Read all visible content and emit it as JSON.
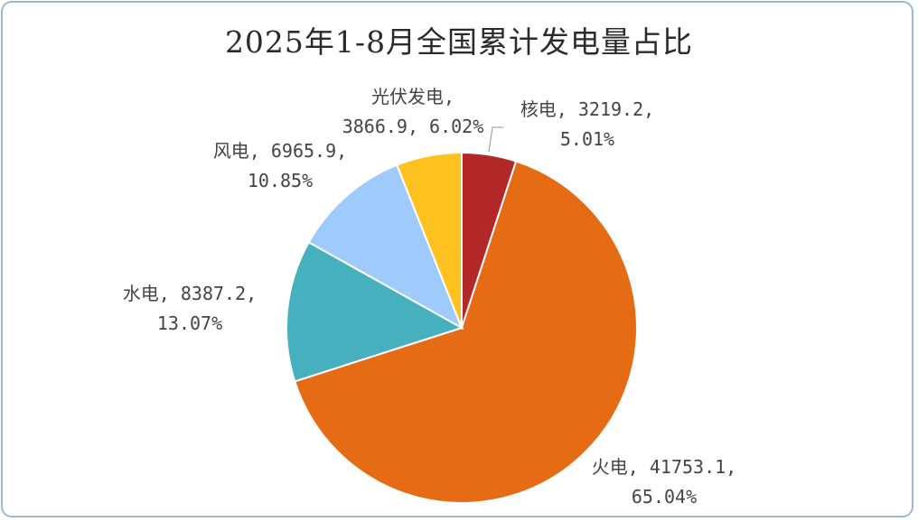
{
  "chart_data": {
    "type": "pie",
    "title": "2025年1-8月全国累计发电量占比",
    "slices": [
      {
        "name": "核电",
        "value": 3219.2,
        "percent_label": "5.01%",
        "color": "#b22727",
        "line1": "核电, 3219.2,",
        "line2": "5.01%"
      },
      {
        "name": "火电",
        "value": 41753.1,
        "percent_label": "65.04%",
        "color": "#e66b15",
        "line1": "火电, 41753.1,",
        "line2": "65.04%"
      },
      {
        "name": "水电",
        "value": 8387.2,
        "percent_label": "13.07%",
        "color": "#46b0bf",
        "line1": "水电, 8387.2,",
        "line2": "13.07%"
      },
      {
        "name": "风电",
        "value": 6965.9,
        "percent_label": "10.85%",
        "color": "#9ecbfb",
        "line1": "风电, 6965.9,",
        "line2": "10.85%"
      },
      {
        "name": "光伏发电",
        "value": 3866.9,
        "percent_label": "6.02%",
        "color": "#fdc21f",
        "line1": "光伏发电,",
        "line2": "3866.9, 6.02%"
      }
    ]
  }
}
